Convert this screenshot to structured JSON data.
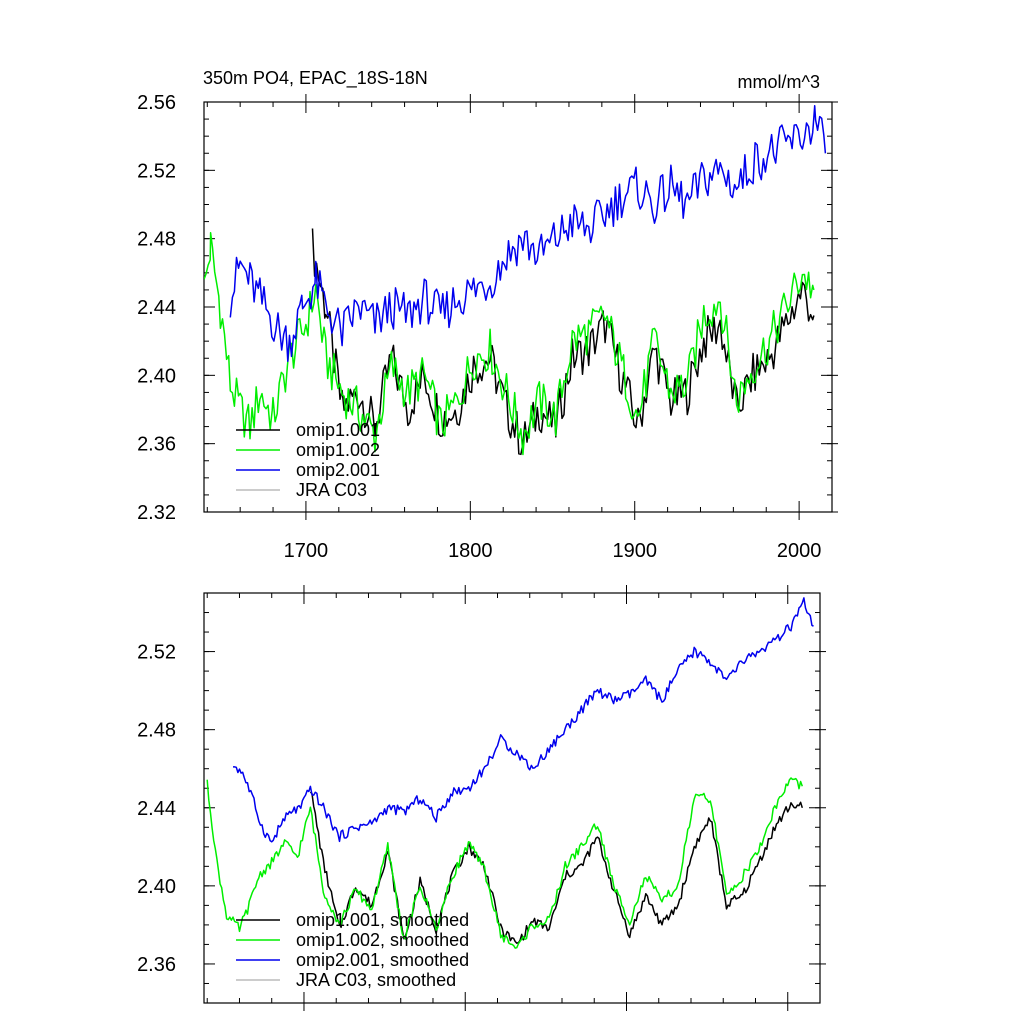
{
  "chart_data": [
    {
      "type": "line",
      "title": "350m PO4, EPAC_18S-18N",
      "units": "mmol/m^3",
      "xlim": [
        1638,
        2020
      ],
      "ylim": [
        2.32,
        2.56
      ],
      "x_ticks": [
        1700,
        1800,
        1900,
        2000
      ],
      "x_tick_labels": [
        "1700",
        "1800",
        "1900",
        "2000"
      ],
      "y_ticks": [
        2.32,
        2.36,
        2.4,
        2.44,
        2.48,
        2.52,
        2.56
      ],
      "y_tick_labels": [
        "2.32",
        "2.36",
        "2.40",
        "2.44",
        "2.48",
        "2.52",
        "2.56"
      ],
      "legend_location": "bottom-left",
      "series": [
        {
          "name": "omip1.001",
          "color": "#000000",
          "smooth": false,
          "x": [
            1704,
            1712,
            1722,
            1732,
            1742,
            1752,
            1762,
            1772,
            1782,
            1792,
            1802,
            1812,
            1822,
            1832,
            1842,
            1852,
            1862,
            1872,
            1882,
            1892,
            1902,
            1912,
            1922,
            1932,
            1942,
            1952,
            1962,
            1972,
            1982,
            1992,
            2002,
            2009
          ],
          "values": [
            2.475,
            2.44,
            2.38,
            2.39,
            2.37,
            2.41,
            2.38,
            2.4,
            2.375,
            2.38,
            2.405,
            2.41,
            2.38,
            2.36,
            2.38,
            2.37,
            2.41,
            2.415,
            2.43,
            2.4,
            2.37,
            2.415,
            2.385,
            2.39,
            2.42,
            2.43,
            2.38,
            2.4,
            2.41,
            2.43,
            2.45,
            2.435
          ]
        },
        {
          "name": "omip1.002",
          "color": "#00ee00",
          "smooth": false,
          "x": [
            1638,
            1642,
            1648,
            1654,
            1660,
            1666,
            1672,
            1680,
            1690,
            1700,
            1706,
            1712,
            1722,
            1732,
            1742,
            1752,
            1762,
            1772,
            1782,
            1792,
            1802,
            1812,
            1822,
            1832,
            1842,
            1852,
            1862,
            1872,
            1882,
            1892,
            1902,
            1912,
            1922,
            1932,
            1942,
            1952,
            1962,
            1972,
            1982,
            1992,
            2002,
            2009
          ],
          "values": [
            2.45,
            2.475,
            2.44,
            2.395,
            2.38,
            2.37,
            2.39,
            2.375,
            2.41,
            2.43,
            2.45,
            2.41,
            2.39,
            2.38,
            2.365,
            2.405,
            2.39,
            2.4,
            2.37,
            2.385,
            2.41,
            2.415,
            2.39,
            2.365,
            2.385,
            2.375,
            2.42,
            2.425,
            2.435,
            2.405,
            2.375,
            2.42,
            2.39,
            2.395,
            2.435,
            2.445,
            2.385,
            2.405,
            2.42,
            2.44,
            2.46,
            2.45
          ]
        },
        {
          "name": "omip2.001",
          "color": "#0000ee",
          "smooth": false,
          "x": [
            1654,
            1660,
            1666,
            1672,
            1678,
            1684,
            1690,
            1698,
            1706,
            1712,
            1722,
            1732,
            1742,
            1752,
            1762,
            1772,
            1782,
            1792,
            1802,
            1812,
            1822,
            1832,
            1842,
            1852,
            1862,
            1872,
            1882,
            1892,
            1902,
            1912,
            1922,
            1932,
            1942,
            1952,
            1962,
            1972,
            1982,
            1992,
            2002,
            2010,
            2016
          ],
          "values": [
            2.445,
            2.465,
            2.455,
            2.445,
            2.435,
            2.425,
            2.42,
            2.44,
            2.455,
            2.44,
            2.425,
            2.44,
            2.43,
            2.44,
            2.435,
            2.445,
            2.435,
            2.445,
            2.45,
            2.455,
            2.47,
            2.48,
            2.47,
            2.48,
            2.49,
            2.485,
            2.495,
            2.505,
            2.51,
            2.5,
            2.51,
            2.5,
            2.515,
            2.52,
            2.51,
            2.525,
            2.53,
            2.535,
            2.54,
            2.55,
            2.53
          ]
        },
        {
          "name": "JRA C03",
          "color": "#bbbbbb",
          "smooth": false,
          "x": [],
          "values": []
        }
      ]
    },
    {
      "type": "line",
      "title": "",
      "units": "",
      "xlim": [
        1638,
        2020
      ],
      "ylim": [
        2.34,
        2.55
      ],
      "x_ticks": [
        1700,
        1800,
        1900,
        2000
      ],
      "x_tick_labels": [],
      "y_ticks": [
        2.36,
        2.4,
        2.44,
        2.48,
        2.52
      ],
      "y_tick_labels": [
        "2.36",
        "2.40",
        "2.44",
        "2.48",
        "2.52"
      ],
      "legend_location": "bottom-left",
      "series": [
        {
          "name": "omip1.001, smoothed",
          "color": "#000000",
          "smooth": true,
          "x": [
            1704,
            1712,
            1722,
            1732,
            1742,
            1752,
            1762,
            1772,
            1782,
            1792,
            1802,
            1812,
            1822,
            1832,
            1842,
            1852,
            1862,
            1872,
            1882,
            1892,
            1902,
            1912,
            1922,
            1932,
            1942,
            1952,
            1962,
            1972,
            1982,
            1992,
            2002,
            2009
          ],
          "values": [
            2.45,
            2.412,
            2.378,
            2.4,
            2.39,
            2.418,
            2.372,
            2.402,
            2.378,
            2.405,
            2.42,
            2.41,
            2.378,
            2.37,
            2.382,
            2.378,
            2.405,
            2.41,
            2.425,
            2.398,
            2.375,
            2.395,
            2.38,
            2.39,
            2.42,
            2.435,
            2.39,
            2.395,
            2.412,
            2.43,
            2.442,
            2.44
          ]
        },
        {
          "name": "omip1.002, smoothed",
          "color": "#00ee00",
          "smooth": true,
          "x": [
            1640,
            1646,
            1652,
            1660,
            1666,
            1672,
            1680,
            1688,
            1696,
            1704,
            1712,
            1722,
            1732,
            1742,
            1752,
            1762,
            1772,
            1782,
            1792,
            1802,
            1812,
            1822,
            1832,
            1842,
            1852,
            1862,
            1872,
            1882,
            1892,
            1902,
            1912,
            1922,
            1932,
            1942,
            1952,
            1962,
            1972,
            1982,
            1992,
            2002,
            2009
          ],
          "values": [
            2.452,
            2.412,
            2.385,
            2.378,
            2.39,
            2.405,
            2.412,
            2.422,
            2.415,
            2.44,
            2.398,
            2.38,
            2.398,
            2.388,
            2.42,
            2.372,
            2.4,
            2.378,
            2.405,
            2.422,
            2.408,
            2.375,
            2.368,
            2.38,
            2.382,
            2.41,
            2.42,
            2.432,
            2.4,
            2.382,
            2.405,
            2.392,
            2.4,
            2.445,
            2.445,
            2.395,
            2.405,
            2.418,
            2.44,
            2.455,
            2.451
          ]
        },
        {
          "name": "omip2.001, smoothed",
          "color": "#0000ee",
          "smooth": true,
          "x": [
            1656,
            1662,
            1668,
            1674,
            1680,
            1686,
            1692,
            1698,
            1704,
            1712,
            1722,
            1732,
            1742,
            1752,
            1762,
            1772,
            1782,
            1792,
            1802,
            1812,
            1822,
            1832,
            1842,
            1852,
            1862,
            1872,
            1882,
            1892,
            1902,
            1912,
            1922,
            1932,
            1942,
            1952,
            1962,
            1972,
            1982,
            1992,
            2002,
            2010,
            2016
          ],
          "values": [
            2.462,
            2.458,
            2.445,
            2.43,
            2.422,
            2.432,
            2.438,
            2.44,
            2.45,
            2.44,
            2.425,
            2.43,
            2.432,
            2.44,
            2.438,
            2.445,
            2.435,
            2.448,
            2.45,
            2.46,
            2.475,
            2.468,
            2.46,
            2.47,
            2.48,
            2.49,
            2.5,
            2.495,
            2.498,
            2.505,
            2.495,
            2.51,
            2.52,
            2.515,
            2.505,
            2.515,
            2.52,
            2.525,
            2.533,
            2.545,
            2.533
          ]
        },
        {
          "name": "JRA C03, smoothed",
          "color": "#bbbbbb",
          "smooth": true,
          "x": [],
          "values": []
        }
      ]
    }
  ]
}
